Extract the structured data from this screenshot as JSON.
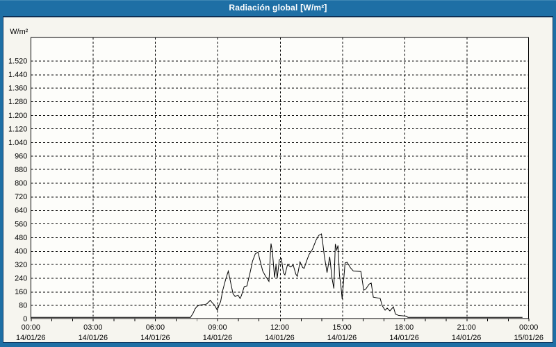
{
  "window": {
    "title": "Radiación global [W/m²]"
  },
  "colors": {
    "titlebar": "#1e6fa5",
    "frame": "#1e6fa5",
    "separator": "#0c2f55",
    "background": "#f6f5ef",
    "plot_background": "#fdfdfa",
    "line": "#000000",
    "grid": "#000000",
    "text": "#000000",
    "title_text": "#ffffff"
  },
  "chart_data": {
    "type": "line",
    "title": "Radiación global [W/m²]",
    "ylabel": "W/m²",
    "xlabel": "",
    "ylim": [
      0,
      1520
    ],
    "y_tick_interval": 80,
    "grid": "dashed",
    "legend_position": "none",
    "y_ticks": [
      {
        "value": 1520,
        "label": "1.520"
      },
      {
        "value": 1440,
        "label": "1.440"
      },
      {
        "value": 1360,
        "label": "1.360"
      },
      {
        "value": 1280,
        "label": "1.280"
      },
      {
        "value": 1200,
        "label": "1.200"
      },
      {
        "value": 1120,
        "label": "1.120"
      },
      {
        "value": 1040,
        "label": "1.040"
      },
      {
        "value": 960,
        "label": "960"
      },
      {
        "value": 880,
        "label": "880"
      },
      {
        "value": 800,
        "label": "800"
      },
      {
        "value": 720,
        "label": "720"
      },
      {
        "value": 640,
        "label": "640"
      },
      {
        "value": 560,
        "label": "560"
      },
      {
        "value": 480,
        "label": "480"
      },
      {
        "value": 400,
        "label": "400"
      },
      {
        "value": 320,
        "label": "320"
      },
      {
        "value": 240,
        "label": "240"
      },
      {
        "value": 160,
        "label": "160"
      },
      {
        "value": 80,
        "label": "80"
      },
      {
        "value": 0,
        "label": "0"
      }
    ],
    "x_ticks": [
      {
        "hour": 0,
        "time": "00:00",
        "date": "14/01/26"
      },
      {
        "hour": 3,
        "time": "03:00",
        "date": "14/01/26"
      },
      {
        "hour": 6,
        "time": "06:00",
        "date": "14/01/26"
      },
      {
        "hour": 9,
        "time": "09:00",
        "date": "14/01/26"
      },
      {
        "hour": 12,
        "time": "12:00",
        "date": "14/01/26"
      },
      {
        "hour": 15,
        "time": "15:00",
        "date": "14/01/26"
      },
      {
        "hour": 18,
        "time": "18:00",
        "date": "14/01/26"
      },
      {
        "hour": 21,
        "time": "21:00",
        "date": "14/01/26"
      },
      {
        "hour": 24,
        "time": "00:00",
        "date": "15/01/26"
      }
    ],
    "minor_x_tick_every_hours": 1,
    "series": [
      {
        "name": "Radiación global",
        "unit": "W/m²",
        "points": [
          [
            0.0,
            8
          ],
          [
            7.7,
            8
          ],
          [
            7.82,
            31
          ],
          [
            7.92,
            58
          ],
          [
            8.02,
            73
          ],
          [
            8.16,
            81
          ],
          [
            8.42,
            85
          ],
          [
            8.49,
            88
          ],
          [
            8.65,
            108
          ],
          [
            8.75,
            93
          ],
          [
            8.85,
            81
          ],
          [
            8.99,
            50
          ],
          [
            9.09,
            85
          ],
          [
            9.15,
            100
          ],
          [
            9.25,
            166
          ],
          [
            9.39,
            230
          ],
          [
            9.52,
            281
          ],
          [
            9.65,
            204
          ],
          [
            9.75,
            147
          ],
          [
            9.85,
            131
          ],
          [
            9.99,
            139
          ],
          [
            10.09,
            119
          ],
          [
            10.15,
            135
          ],
          [
            10.29,
            189
          ],
          [
            10.42,
            193
          ],
          [
            10.59,
            281
          ],
          [
            10.69,
            339
          ],
          [
            10.82,
            382
          ],
          [
            10.95,
            392
          ],
          [
            11.08,
            328
          ],
          [
            11.18,
            281
          ],
          [
            11.32,
            250
          ],
          [
            11.42,
            231
          ],
          [
            11.48,
            220
          ],
          [
            11.55,
            385
          ],
          [
            11.58,
            443
          ],
          [
            11.65,
            390
          ],
          [
            11.75,
            243
          ],
          [
            11.82,
            316
          ],
          [
            11.88,
            239
          ],
          [
            11.98,
            347
          ],
          [
            12.08,
            355
          ],
          [
            12.18,
            270
          ],
          [
            12.25,
            258
          ],
          [
            12.38,
            320
          ],
          [
            12.52,
            305
          ],
          [
            12.65,
            316
          ],
          [
            12.78,
            262
          ],
          [
            12.85,
            250
          ],
          [
            12.98,
            335
          ],
          [
            13.11,
            301
          ],
          [
            13.18,
            297
          ],
          [
            13.29,
            339
          ],
          [
            13.41,
            378
          ],
          [
            13.58,
            410
          ],
          [
            13.75,
            463
          ],
          [
            13.88,
            491
          ],
          [
            14.01,
            500
          ],
          [
            14.08,
            440
          ],
          [
            14.15,
            370
          ],
          [
            14.28,
            272
          ],
          [
            14.41,
            365
          ],
          [
            14.52,
            239
          ],
          [
            14.61,
            178
          ],
          [
            14.68,
            440
          ],
          [
            14.75,
            405
          ],
          [
            14.81,
            432
          ],
          [
            14.88,
            258
          ],
          [
            14.95,
            193
          ],
          [
            15.01,
            116
          ],
          [
            15.15,
            328
          ],
          [
            15.25,
            333
          ],
          [
            15.41,
            300
          ],
          [
            15.55,
            281
          ],
          [
            15.91,
            278
          ],
          [
            16.05,
            168
          ],
          [
            16.15,
            175
          ],
          [
            16.31,
            204
          ],
          [
            16.41,
            210
          ],
          [
            16.51,
            127
          ],
          [
            16.84,
            120
          ],
          [
            16.94,
            77
          ],
          [
            17.08,
            50
          ],
          [
            17.18,
            62
          ],
          [
            17.31,
            46
          ],
          [
            17.48,
            70
          ],
          [
            17.58,
            27
          ],
          [
            17.74,
            19
          ],
          [
            18.08,
            15
          ],
          [
            18.18,
            8
          ],
          [
            23.7,
            8
          ]
        ]
      }
    ]
  }
}
